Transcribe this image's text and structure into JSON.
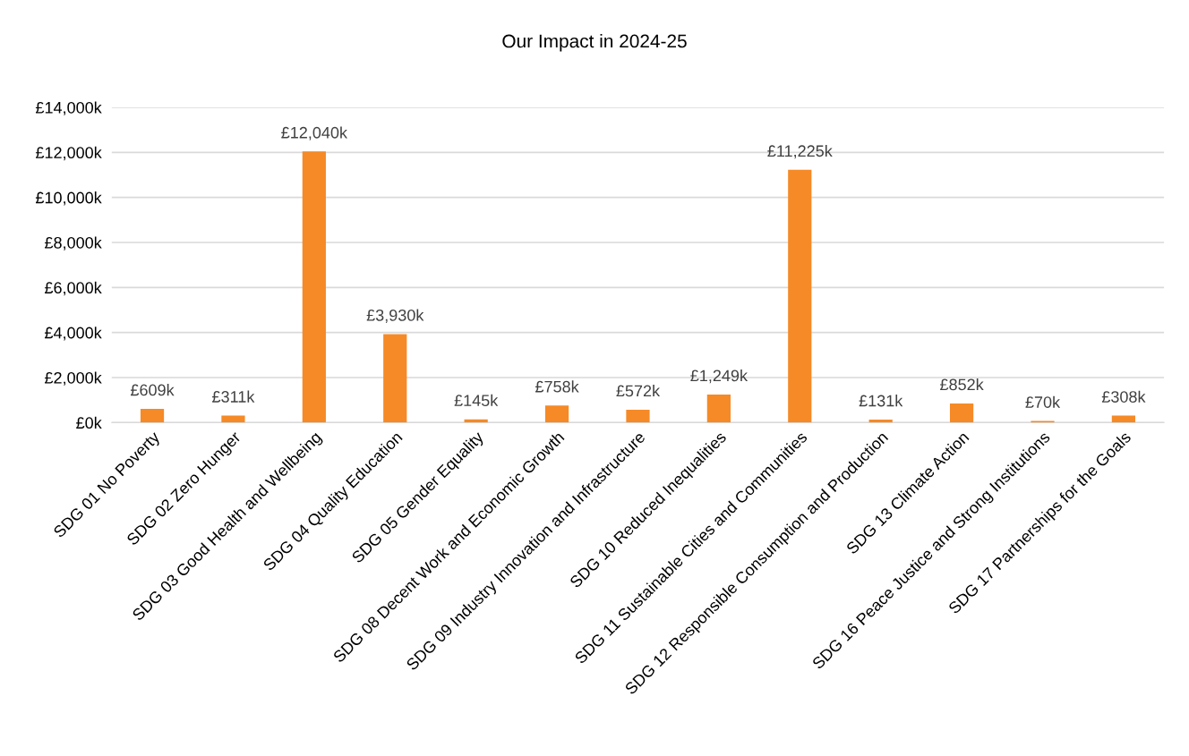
{
  "chart_data": {
    "type": "bar",
    "title": "Our Impact in 2024-25",
    "categories": [
      "SDG 01 No Poverty",
      "SDG 02 Zero Hunger",
      "SDG 03 Good Health and Wellbeing",
      "SDG 04 Quality Education",
      "SDG 05 Gender Equality",
      "SDG 08 Decent Work and Economic Growth",
      "SDG 09 Industry Innovation and Infrastructure",
      "SDG 10 Reduced Inequalities",
      "SDG 11 Sustainable Cities and Communities",
      "SDG 12 Responsible Consumption and Production",
      "SDG 13 Climate Action",
      "SDG 16 Peace Justice and Strong Institutions",
      "SDG 17 Partnerships for the Goals"
    ],
    "values": [
      609,
      311,
      12040,
      3930,
      145,
      758,
      572,
      1249,
      11225,
      131,
      852,
      70,
      308
    ],
    "value_labels": [
      "£609k",
      "£311k",
      "£12,040k",
      "£3,930k",
      "£145k",
      "£758k",
      "£572k",
      "£1,249k",
      "£11,225k",
      "£131k",
      "£852k",
      "£70k",
      "£308k"
    ],
    "color": "#f58a27",
    "ylim": [
      0,
      14000
    ],
    "yticks": [
      {
        "value": 0,
        "label": "£0k"
      },
      {
        "value": 2000,
        "label": "£2,000k"
      },
      {
        "value": 4000,
        "label": "£4,000k"
      },
      {
        "value": 6000,
        "label": "£6,000k"
      },
      {
        "value": 8000,
        "label": "£8,000k"
      },
      {
        "value": 10000,
        "label": "£10,000k"
      },
      {
        "value": 12000,
        "label": "£12,000k"
      },
      {
        "value": 14000,
        "label": "£14,000k"
      }
    ],
    "grid": "y",
    "legend": false
  }
}
